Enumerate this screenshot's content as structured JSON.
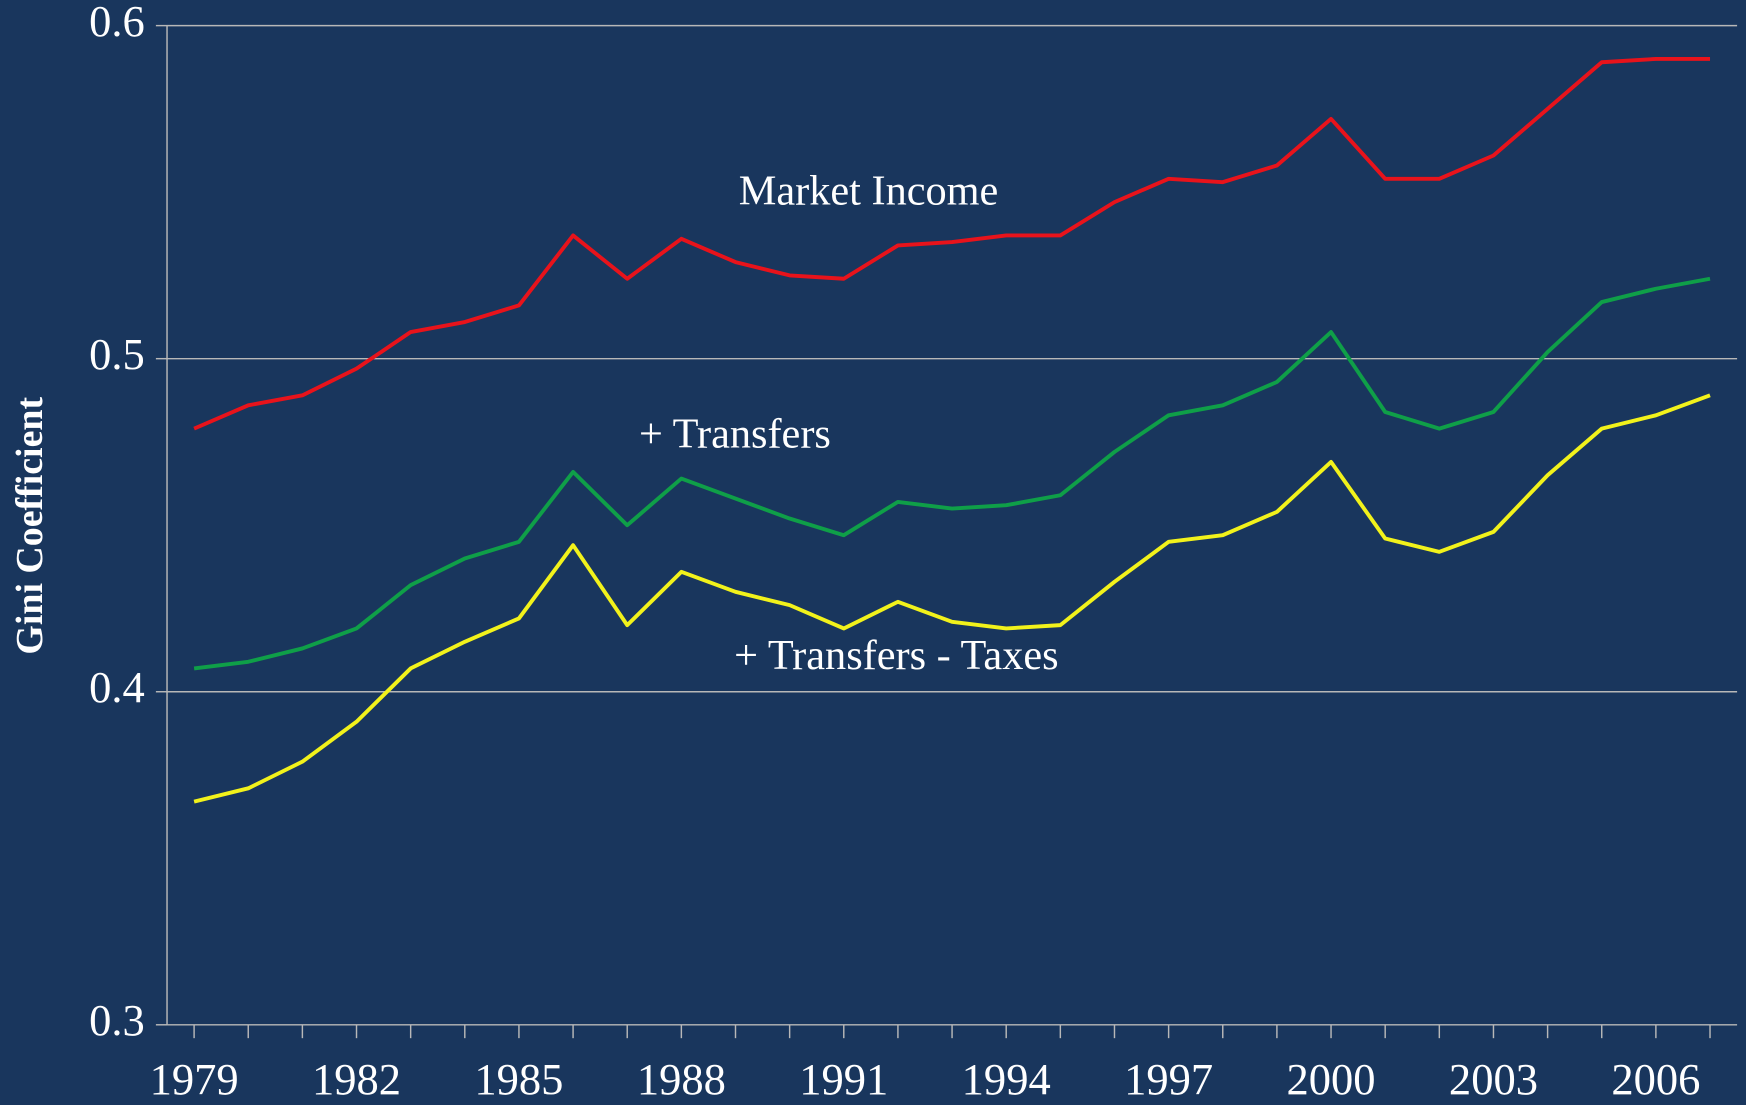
{
  "chart_data": {
    "type": "line",
    "y_label": "Gini Coefficient",
    "x": [
      1979,
      1980,
      1981,
      1982,
      1983,
      1984,
      1985,
      1986,
      1987,
      1988,
      1989,
      1990,
      1991,
      1992,
      1993,
      1994,
      1995,
      1996,
      1997,
      1998,
      1999,
      2000,
      2001,
      2002,
      2003,
      2004,
      2005,
      2006,
      2007
    ],
    "series": [
      {
        "name": "Market Income",
        "color": "#e8131b",
        "values": [
          0.479,
          0.486,
          0.489,
          0.497,
          0.508,
          0.511,
          0.516,
          0.537,
          0.524,
          0.536,
          0.529,
          0.525,
          0.524,
          0.534,
          0.535,
          0.537,
          0.537,
          0.547,
          0.554,
          0.553,
          0.558,
          0.572,
          0.554,
          0.554,
          0.561,
          0.575,
          0.589,
          0.59,
          0.59
        ]
      },
      {
        "name": "+ Transfers",
        "color": "#0f9f48",
        "values": [
          0.407,
          0.409,
          0.413,
          0.419,
          0.432,
          0.44,
          0.445,
          0.466,
          0.45,
          0.464,
          0.458,
          0.452,
          0.447,
          0.457,
          0.455,
          0.456,
          0.459,
          0.472,
          0.483,
          0.486,
          0.493,
          0.508,
          0.484,
          0.479,
          0.484,
          0.502,
          0.517,
          0.521,
          0.524
        ]
      },
      {
        "name": "+ Transfers - Taxes",
        "color": "#f2f21b",
        "values": [
          0.367,
          0.371,
          0.379,
          0.391,
          0.407,
          0.415,
          0.422,
          0.444,
          0.42,
          0.436,
          0.43,
          0.426,
          0.419,
          0.427,
          0.421,
          0.419,
          0.42,
          0.433,
          0.445,
          0.447,
          0.454,
          0.469,
          0.446,
          0.442,
          0.448,
          0.465,
          0.479,
          0.483,
          0.489
        ]
      }
    ],
    "xlim": [
      1978.5,
      2007.5
    ],
    "xticks": [
      1979,
      1982,
      1985,
      1988,
      1991,
      1994,
      1997,
      2000,
      2003,
      2006
    ],
    "ylim": [
      0.3,
      0.6
    ],
    "yticks": [
      0.3,
      0.4,
      0.5,
      0.6
    ],
    "grid": true
  }
}
